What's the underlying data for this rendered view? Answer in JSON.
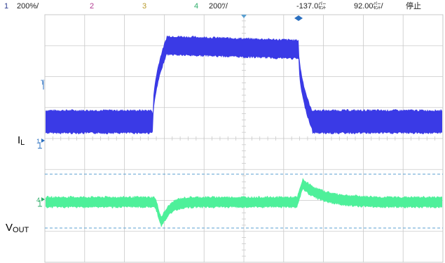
{
  "status_bar": {
    "ch1": {
      "number": "1",
      "scale": "200%/",
      "color": "#2b3a8f"
    },
    "ch2": {
      "number": "2",
      "color": "#b0388f"
    },
    "ch3": {
      "number": "3",
      "color": "#b89a2a"
    },
    "ch4": {
      "number": "4",
      "scale": "200ﾂ/",
      "color": "#2eae6a"
    },
    "trigger_offset": "-137.0㌫",
    "timebase": "92.00㌫/",
    "run_state": "停止"
  },
  "labels": {
    "current_main": "I",
    "current_sub": "L",
    "voltage_main": "V",
    "voltage_sub": "OUT"
  },
  "markers": {
    "ch1_ground": "1",
    "ch4_ground": "4",
    "trigger_level": "T"
  },
  "colors": {
    "grid": "#c9c9c9",
    "ch1_trace": "#3a3ae6",
    "ch4_trace": "#4ef09a",
    "cursor": "#5a9fd0",
    "marker": "#2a6fc0"
  }
}
